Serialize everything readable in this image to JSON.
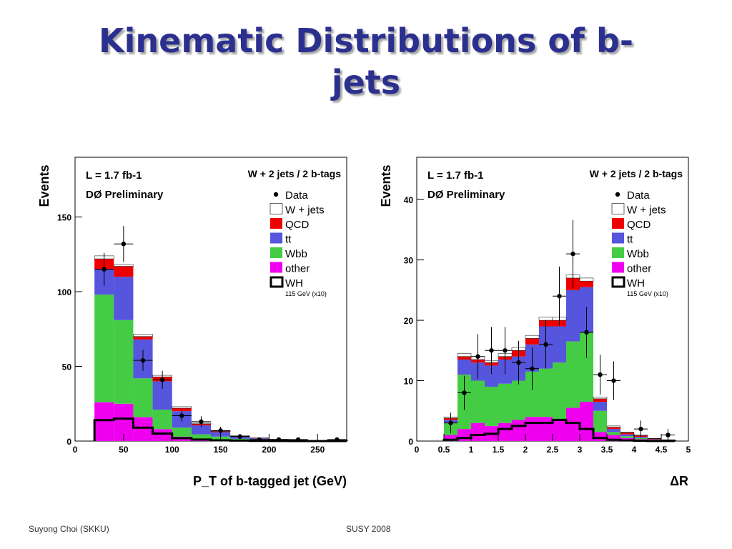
{
  "slide": {
    "title_line1": "Kinematic Distributions of b-",
    "title_line2": "jets",
    "footer_left": "Suyong Choi (SKKU)",
    "footer_center": "SUSY 2008"
  },
  "colors": {
    "title": "#2b2f8e",
    "W + jets": "#ffffff",
    "QCD": "#ee0000",
    "tt": "#5555dd",
    "Wbb": "#44cc44",
    "other": "#ee00ee",
    "WH": "#000000"
  },
  "chart_data": [
    {
      "type": "bar",
      "subtype": "stacked-histogram",
      "ylabel": "Events",
      "xlabel": "P_T of b-tagged jet  (GeV)",
      "xlim": [
        0,
        280
      ],
      "ylim": [
        0,
        190
      ],
      "xticks": [
        "0",
        "50",
        "100",
        "150",
        "200",
        "250"
      ],
      "yticks": [
        "0",
        "50",
        "100",
        "150"
      ],
      "annotations": [
        "L = 1.7 fb-1",
        "DØ Preliminary",
        "W + 2 jets /  2 b-tags"
      ],
      "legend": {
        "placement": "top-right",
        "entries": [
          "Data",
          "W + jets",
          "QCD",
          "tt",
          "Wbb",
          "other",
          "WH"
        ],
        "wh_note": "115 GeV (x10)"
      },
      "bin_edges": [
        20,
        40,
        60,
        80,
        100,
        120,
        140,
        160,
        180,
        200,
        220,
        240,
        260,
        280
      ],
      "stack": [
        {
          "name": "other",
          "values": [
            26,
            25,
            16,
            8,
            3,
            1.5,
            1,
            0.5,
            0.3,
            0.2,
            0.1,
            0.1,
            0.05
          ]
        },
        {
          "name": "Wbb",
          "values": [
            72,
            56,
            26,
            13,
            6,
            3,
            2,
            1,
            0.5,
            0.3,
            0.2,
            0.1,
            0.05
          ]
        },
        {
          "name": "tt",
          "values": [
            17,
            29,
            26,
            19,
            11,
            6,
            3,
            1.5,
            1,
            0.5,
            0.3,
            0.1,
            0.05
          ]
        },
        {
          "name": "QCD",
          "values": [
            7,
            7,
            2,
            3,
            2,
            1,
            0.5,
            0.3,
            0.2,
            0.1,
            0.1,
            0.05,
            0.02
          ]
        },
        {
          "name": "W + jets",
          "values": [
            2,
            1,
            1.5,
            1,
            1,
            0.5,
            0.3,
            0.2,
            0.1,
            0.1,
            0.05,
            0.02,
            0.01
          ]
        }
      ],
      "wh": [
        14,
        15,
        9,
        5,
        2,
        1,
        0.5,
        0.3,
        0.1,
        0.05,
        0.02,
        0.01,
        0.01
      ],
      "data": {
        "x": [
          30,
          50,
          70,
          90,
          110,
          130,
          150,
          170,
          190,
          210,
          230,
          270
        ],
        "y": [
          115,
          132,
          54,
          41,
          17,
          13,
          7,
          3,
          1,
          1,
          1,
          1
        ],
        "yerr": [
          11,
          12,
          7,
          6,
          4,
          3.6,
          2.6,
          1.7,
          1,
          1,
          1,
          1
        ]
      }
    },
    {
      "type": "bar",
      "subtype": "stacked-histogram",
      "ylabel": "Events",
      "xlabel": "ΔR",
      "xlim": [
        0,
        5
      ],
      "ylim": [
        0,
        47
      ],
      "xticks": [
        "0",
        "0.5",
        "1",
        "1.5",
        "2",
        "2.5",
        "3",
        "3.5",
        "4",
        "4.5",
        "5"
      ],
      "yticks": [
        "0",
        "10",
        "20",
        "30",
        "40"
      ],
      "annotations": [
        "L = 1.7 fb-1",
        "DØ Preliminary",
        "W + 2 jets /  2 b-tags"
      ],
      "legend": {
        "placement": "top-right",
        "entries": [
          "Data",
          "W + jets",
          "QCD",
          "tt",
          "Wbb",
          "other",
          "WH"
        ],
        "wh_note": "115 GeV (x10)"
      },
      "bin_edges": [
        0.5,
        0.75,
        1.0,
        1.25,
        1.5,
        1.75,
        2.0,
        2.25,
        2.5,
        2.75,
        3.0,
        3.25,
        3.5,
        3.75,
        4.0,
        4.25,
        4.5,
        4.75
      ],
      "stack": [
        {
          "name": "other",
          "values": [
            1,
            2,
            3,
            2.5,
            3,
            3.5,
            4,
            4,
            3.5,
            5.5,
            6.5,
            1.5,
            1,
            0.5,
            0.3,
            0.1,
            0.05
          ]
        },
        {
          "name": "Wbb",
          "values": [
            2,
            9,
            7,
            6.5,
            6.5,
            6.5,
            7.5,
            8,
            9.5,
            11,
            11.5,
            3.5,
            0.5,
            0.3,
            0.2,
            0.1,
            0.05
          ]
        },
        {
          "name": "tt",
          "values": [
            0.5,
            2.5,
            3,
            3.5,
            4,
            4,
            4.5,
            7,
            6,
            8.5,
            7.5,
            1.5,
            0.5,
            0.3,
            0.2,
            0.1,
            0.05
          ]
        },
        {
          "name": "QCD",
          "values": [
            0.3,
            0.5,
            0.5,
            0.5,
            0.5,
            1,
            1,
            1,
            1,
            2,
            1,
            0.5,
            0.3,
            0.3,
            0.2,
            0.1,
            0.05
          ]
        },
        {
          "name": "W + jets",
          "values": [
            0.2,
            0.5,
            0.5,
            0.3,
            0.5,
            0.5,
            0.5,
            0.5,
            0.5,
            0.5,
            0.5,
            0.3,
            0.2,
            0.1,
            0.1,
            0.05,
            0.02
          ]
        }
      ],
      "wh": [
        0.2,
        0.5,
        1,
        1.2,
        2,
        2.5,
        3,
        3,
        3.5,
        3,
        2,
        0.5,
        0.2,
        0.1,
        0.05,
        0.02,
        0.01
      ],
      "data": {
        "x": [
          0.625,
          0.875,
          1.125,
          1.375,
          1.625,
          1.875,
          2.125,
          2.375,
          2.625,
          2.875,
          3.125,
          3.375,
          3.625,
          4.125,
          4.625
        ],
        "y": [
          3,
          8,
          14,
          15,
          15,
          13,
          12,
          16,
          24,
          31,
          18,
          11,
          10,
          2,
          1
        ],
        "yerr": [
          1.7,
          2.8,
          3.7,
          3.9,
          3.9,
          3.6,
          3.5,
          4,
          4.9,
          5.6,
          4.2,
          3.3,
          3.2,
          1.4,
          1
        ]
      }
    }
  ]
}
